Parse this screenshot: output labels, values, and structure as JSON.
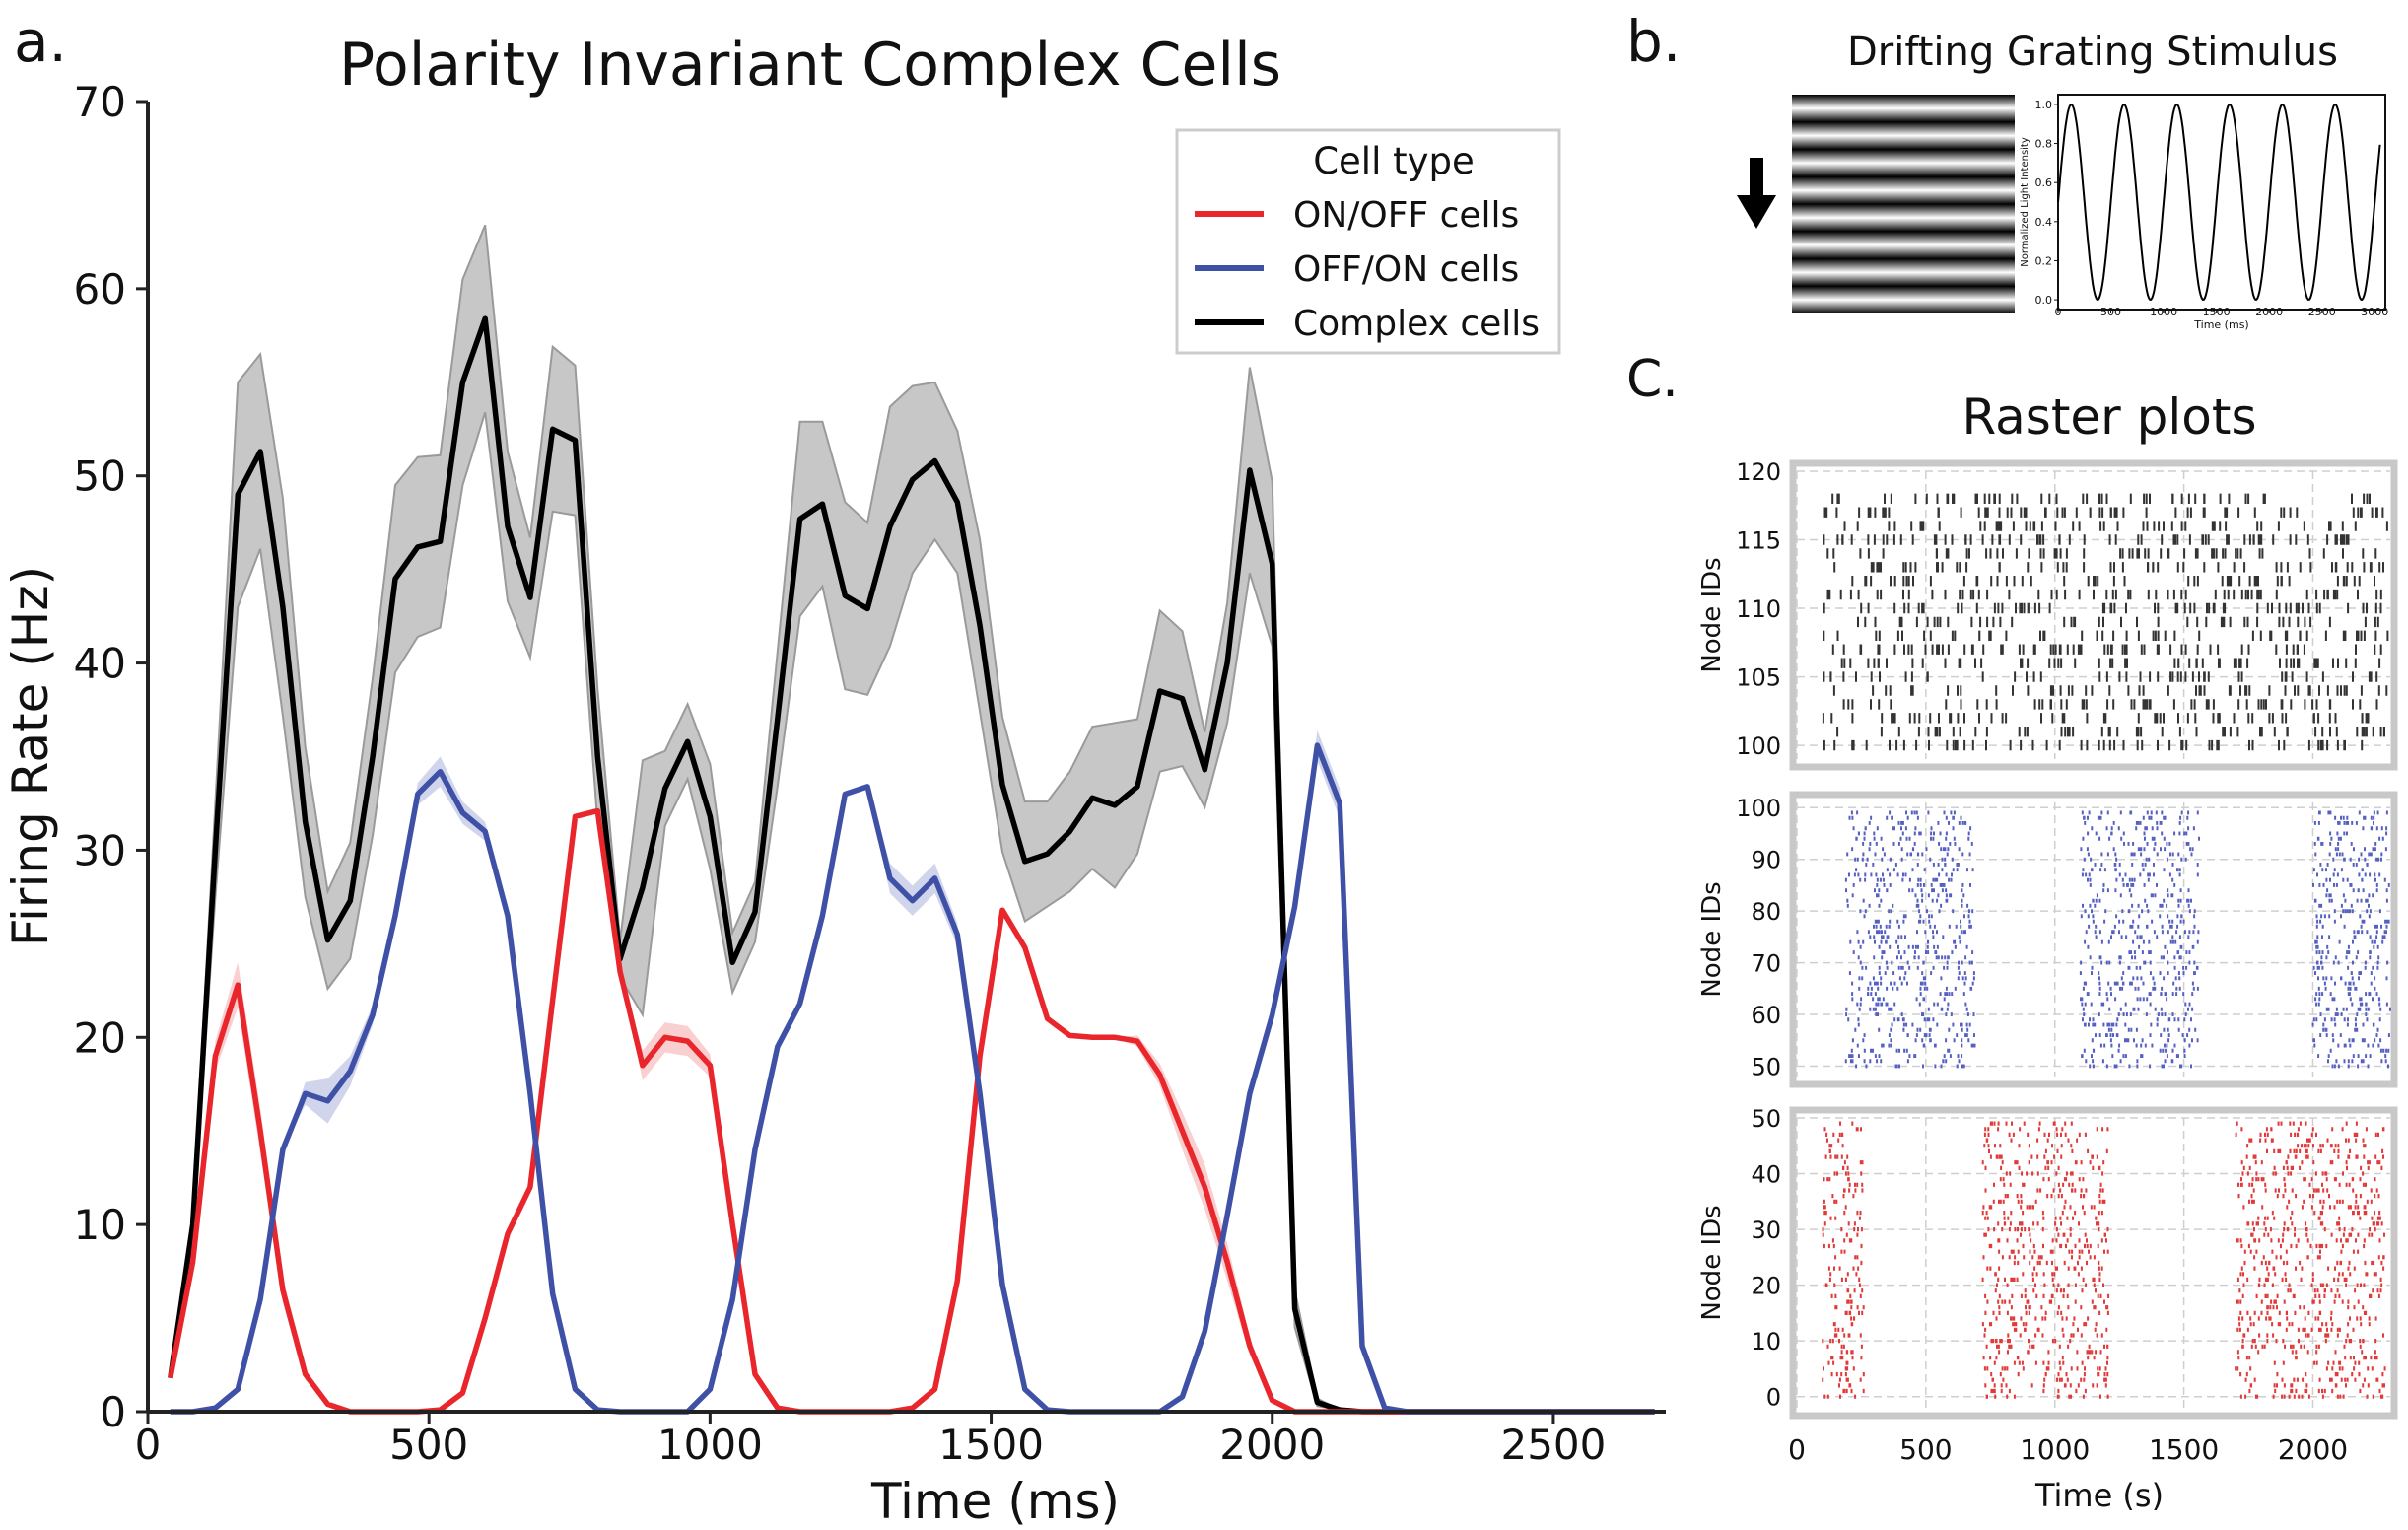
{
  "panel_labels": {
    "a": "a.",
    "b": "b.",
    "c": "C."
  },
  "colors": {
    "on_off": "#e8262c",
    "off_on": "#3f51a6",
    "complex": "#000000",
    "complex_band": "#bdbdbd"
  },
  "chart_data": [
    {
      "id": "a",
      "type": "line",
      "title": "Polarity Invariant Complex Cells",
      "xlabel": "Time (ms)",
      "ylabel": "Firing Rate (Hz)",
      "xlim": [
        0,
        2700
      ],
      "ylim": [
        0,
        70
      ],
      "xticks": [
        "0",
        "500",
        "1000",
        "1500",
        "2000",
        "2500"
      ],
      "yticks": [
        "0",
        "10",
        "20",
        "30",
        "40",
        "50",
        "60",
        "70"
      ],
      "grid": false,
      "legend": {
        "title": "Cell type",
        "placement": "top-right"
      },
      "x": [
        40,
        80,
        120,
        160,
        200,
        240,
        280,
        320,
        360,
        400,
        440,
        480,
        520,
        560,
        600,
        640,
        680,
        720,
        760,
        800,
        840,
        880,
        920,
        960,
        1000,
        1040,
        1080,
        1120,
        1160,
        1200,
        1240,
        1280,
        1320,
        1360,
        1400,
        1440,
        1480,
        1520,
        1560,
        1600,
        1640,
        1680,
        1720,
        1760,
        1800,
        1840,
        1880,
        1920,
        1960,
        2000,
        2040,
        2080,
        2120,
        2160,
        2200,
        2240,
        2280,
        2320,
        2360,
        2400,
        2440,
        2480,
        2520,
        2560,
        2600,
        2640,
        2680
      ],
      "series": [
        {
          "name": "ON/OFF cells",
          "color": "#e8262c",
          "values": [
            1.8,
            8.0,
            19.0,
            22.8,
            15.0,
            6.5,
            2.0,
            0.4,
            0.0,
            0.0,
            0.0,
            0.0,
            0.1,
            1.0,
            5.0,
            9.5,
            12.0,
            22.0,
            31.8,
            32.1,
            23.5,
            18.5,
            20.0,
            19.8,
            18.5,
            10.0,
            2.0,
            0.2,
            0.0,
            0.0,
            0.0,
            0.0,
            0.0,
            0.2,
            1.2,
            7.0,
            19.0,
            26.8,
            24.8,
            21.0,
            20.1,
            20.0,
            20.0,
            19.8,
            18.0,
            15.0,
            12.0,
            8.0,
            3.5,
            0.6,
            0.0,
            0.0,
            0.0,
            0.0,
            0.0,
            0.0,
            0.0,
            0.0,
            0.0,
            0.0,
            0.0,
            0.0,
            0.0,
            0.0,
            0.0,
            0.0,
            0.0
          ],
          "err": [
            0,
            0,
            0.8,
            1.2,
            1.2,
            0.7,
            0.3,
            0,
            0,
            0,
            0,
            0,
            0,
            0,
            0,
            0,
            0,
            0,
            0,
            0,
            0,
            0.8,
            0.8,
            0.8,
            0.6,
            0,
            0,
            0,
            0,
            0,
            0,
            0,
            0,
            0,
            0,
            0,
            0,
            0,
            0,
            0,
            0,
            0,
            0,
            0.3,
            0.6,
            1.0,
            1.2,
            1.0,
            0.5,
            0,
            0,
            0,
            0,
            0,
            0,
            0,
            0,
            0,
            0,
            0,
            0,
            0,
            0,
            0,
            0,
            0,
            0
          ]
        },
        {
          "name": "OFF/ON cells",
          "color": "#3f51a6",
          "values": [
            0.0,
            0.0,
            0.2,
            1.2,
            6.0,
            14.0,
            17.0,
            16.6,
            18.2,
            21.2,
            26.5,
            33.0,
            34.2,
            32.0,
            31.0,
            26.5,
            17.0,
            6.3,
            1.2,
            0.1,
            0.0,
            0.0,
            0.0,
            0.0,
            1.2,
            6.0,
            14.0,
            19.5,
            21.8,
            26.5,
            33.0,
            33.4,
            28.5,
            27.3,
            28.5,
            25.5,
            17.0,
            6.8,
            1.2,
            0.1,
            0.0,
            0.0,
            0.0,
            0.0,
            0.0,
            0.8,
            4.3,
            10.5,
            17.0,
            21.2,
            27.0,
            35.6,
            32.5,
            3.5,
            0.2,
            0.0,
            0.0,
            0.0,
            0.0,
            0.0,
            0.0,
            0.0,
            0.0,
            0.0,
            0.0,
            0.0,
            0.0
          ],
          "err": [
            0,
            0,
            0,
            0,
            0,
            0,
            0.6,
            1.2,
            0.8,
            0.5,
            0.5,
            0.6,
            0.8,
            0.6,
            0.5,
            0.5,
            0,
            0,
            0,
            0,
            0,
            0,
            0,
            0,
            0,
            0,
            0,
            0,
            0,
            0,
            0,
            0,
            0.8,
            0.8,
            0.8,
            0.6,
            0,
            0,
            0,
            0,
            0,
            0,
            0,
            0,
            0,
            0,
            0,
            0,
            0,
            0,
            0,
            0.8,
            0.8,
            0,
            0,
            0,
            0,
            0,
            0,
            0,
            0,
            0,
            0,
            0,
            0,
            0,
            0
          ]
        },
        {
          "name": "Complex cells",
          "color": "#000000",
          "values": [
            1.8,
            10.0,
            30.0,
            49.0,
            51.3,
            43.0,
            31.5,
            25.2,
            27.3,
            35.0,
            44.5,
            46.2,
            46.5,
            55.0,
            58.4,
            47.3,
            43.5,
            52.5,
            51.9,
            35.0,
            24.2,
            28.0,
            33.3,
            35.8,
            31.8,
            24.0,
            26.7,
            37.0,
            47.7,
            48.5,
            43.6,
            42.9,
            47.3,
            49.8,
            50.8,
            48.6,
            42.0,
            33.5,
            29.4,
            29.8,
            31.0,
            32.8,
            32.4,
            33.4,
            38.5,
            38.1,
            34.3,
            40.0,
            50.3,
            45.3,
            5.5,
            0.5,
            0.1,
            0.0,
            0.0,
            0.0,
            0.0,
            0.0,
            0.0,
            0.0,
            0.0,
            0.0,
            0.0,
            0.0,
            0.0,
            0.0,
            0.0
          ],
          "err": [
            0,
            0.5,
            2.5,
            6.0,
            5.2,
            5.8,
            4.0,
            2.6,
            3.1,
            4.2,
            5.0,
            4.8,
            4.6,
            5.5,
            5.0,
            4.0,
            3.2,
            4.4,
            4.0,
            3.6,
            1.0,
            6.8,
            2.0,
            2.0,
            2.8,
            1.6,
            1.6,
            3.6,
            5.2,
            4.4,
            5.0,
            4.6,
            6.4,
            5.0,
            4.2,
            3.8,
            4.6,
            3.6,
            3.2,
            2.8,
            3.2,
            3.8,
            4.4,
            3.6,
            4.3,
            3.6,
            2.0,
            3.2,
            5.5,
            4.4,
            1.0,
            0.2,
            0,
            0,
            0,
            0,
            0,
            0,
            0,
            0,
            0,
            0,
            0,
            0,
            0,
            0,
            0
          ]
        }
      ]
    },
    {
      "id": "b",
      "type": "line",
      "title": "Drifting Grating Stimulus",
      "xlabel": "Time (ms)",
      "ylabel": "Normalized Light Intensity",
      "xlim": [
        0,
        3100
      ],
      "ylim": [
        -0.05,
        1.05
      ],
      "xticks": [
        "0",
        "500",
        "1000",
        "1500",
        "2000",
        "2500",
        "3000"
      ],
      "yticks": [
        "0.0",
        "0.2",
        "0.4",
        "0.6",
        "0.8",
        "1.0"
      ],
      "series": [
        {
          "name": "",
          "function": "sinusoid",
          "period_ms": 500,
          "phase_ms": 125,
          "min": 0,
          "max": 1,
          "color": "#000000"
        }
      ]
    },
    {
      "id": "c",
      "type": "scatter",
      "title": "Raster plots",
      "xlabel": "Time (s)",
      "xlim": [
        0,
        2300
      ],
      "xticks": [
        "0",
        "500",
        "1000",
        "1500",
        "2000"
      ],
      "panels": [
        {
          "ylabel": "Node IDs",
          "ylim": [
            99,
            120
          ],
          "yticks": [
            "100",
            "105",
            "110",
            "115",
            "120"
          ],
          "color": "#333333",
          "node_range": [
            100,
            118
          ],
          "active_windows": [
            [
              100,
              2290
            ]
          ]
        },
        {
          "ylabel": "Node IDs",
          "ylim": [
            48,
            101
          ],
          "yticks": [
            "50",
            "60",
            "70",
            "80",
            "90",
            "100"
          ],
          "color": "#5560c0",
          "node_range": [
            50,
            99
          ],
          "active_windows": [
            [
              190,
              690
            ],
            [
              1100,
              1560
            ],
            [
              2000,
              2300
            ]
          ]
        },
        {
          "ylabel": "Node IDs",
          "ylim": [
            -2,
            50
          ],
          "yticks": [
            "0",
            "10",
            "20",
            "30",
            "40",
            "50"
          ],
          "color": "#e03a3a",
          "node_range": [
            0,
            49
          ],
          "active_windows": [
            [
              100,
              260
            ],
            [
              720,
              1210
            ],
            [
              1700,
              2280
            ]
          ]
        }
      ]
    }
  ]
}
